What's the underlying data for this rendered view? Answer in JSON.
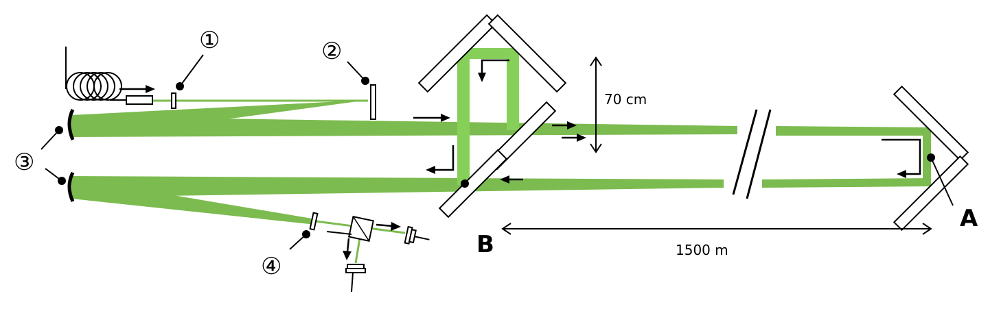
{
  "colors": {
    "beam": "#7cbb4f",
    "beam_light": "#86d05a",
    "stroke": "#000000",
    "background": "#ffffff"
  },
  "labels": {
    "marker1": "①",
    "marker2": "②",
    "marker3": "③",
    "marker4": "④",
    "dist_vertical": "70 cm",
    "dist_horizontal": "1500 m",
    "point_a": "A",
    "point_b": "B"
  },
  "icons": {
    "fiber": "fiber-coil-icon",
    "mirror": "mirror-icon",
    "beamsplitter": "beamsplitter-cube-icon",
    "detector": "photodetector-icon"
  }
}
